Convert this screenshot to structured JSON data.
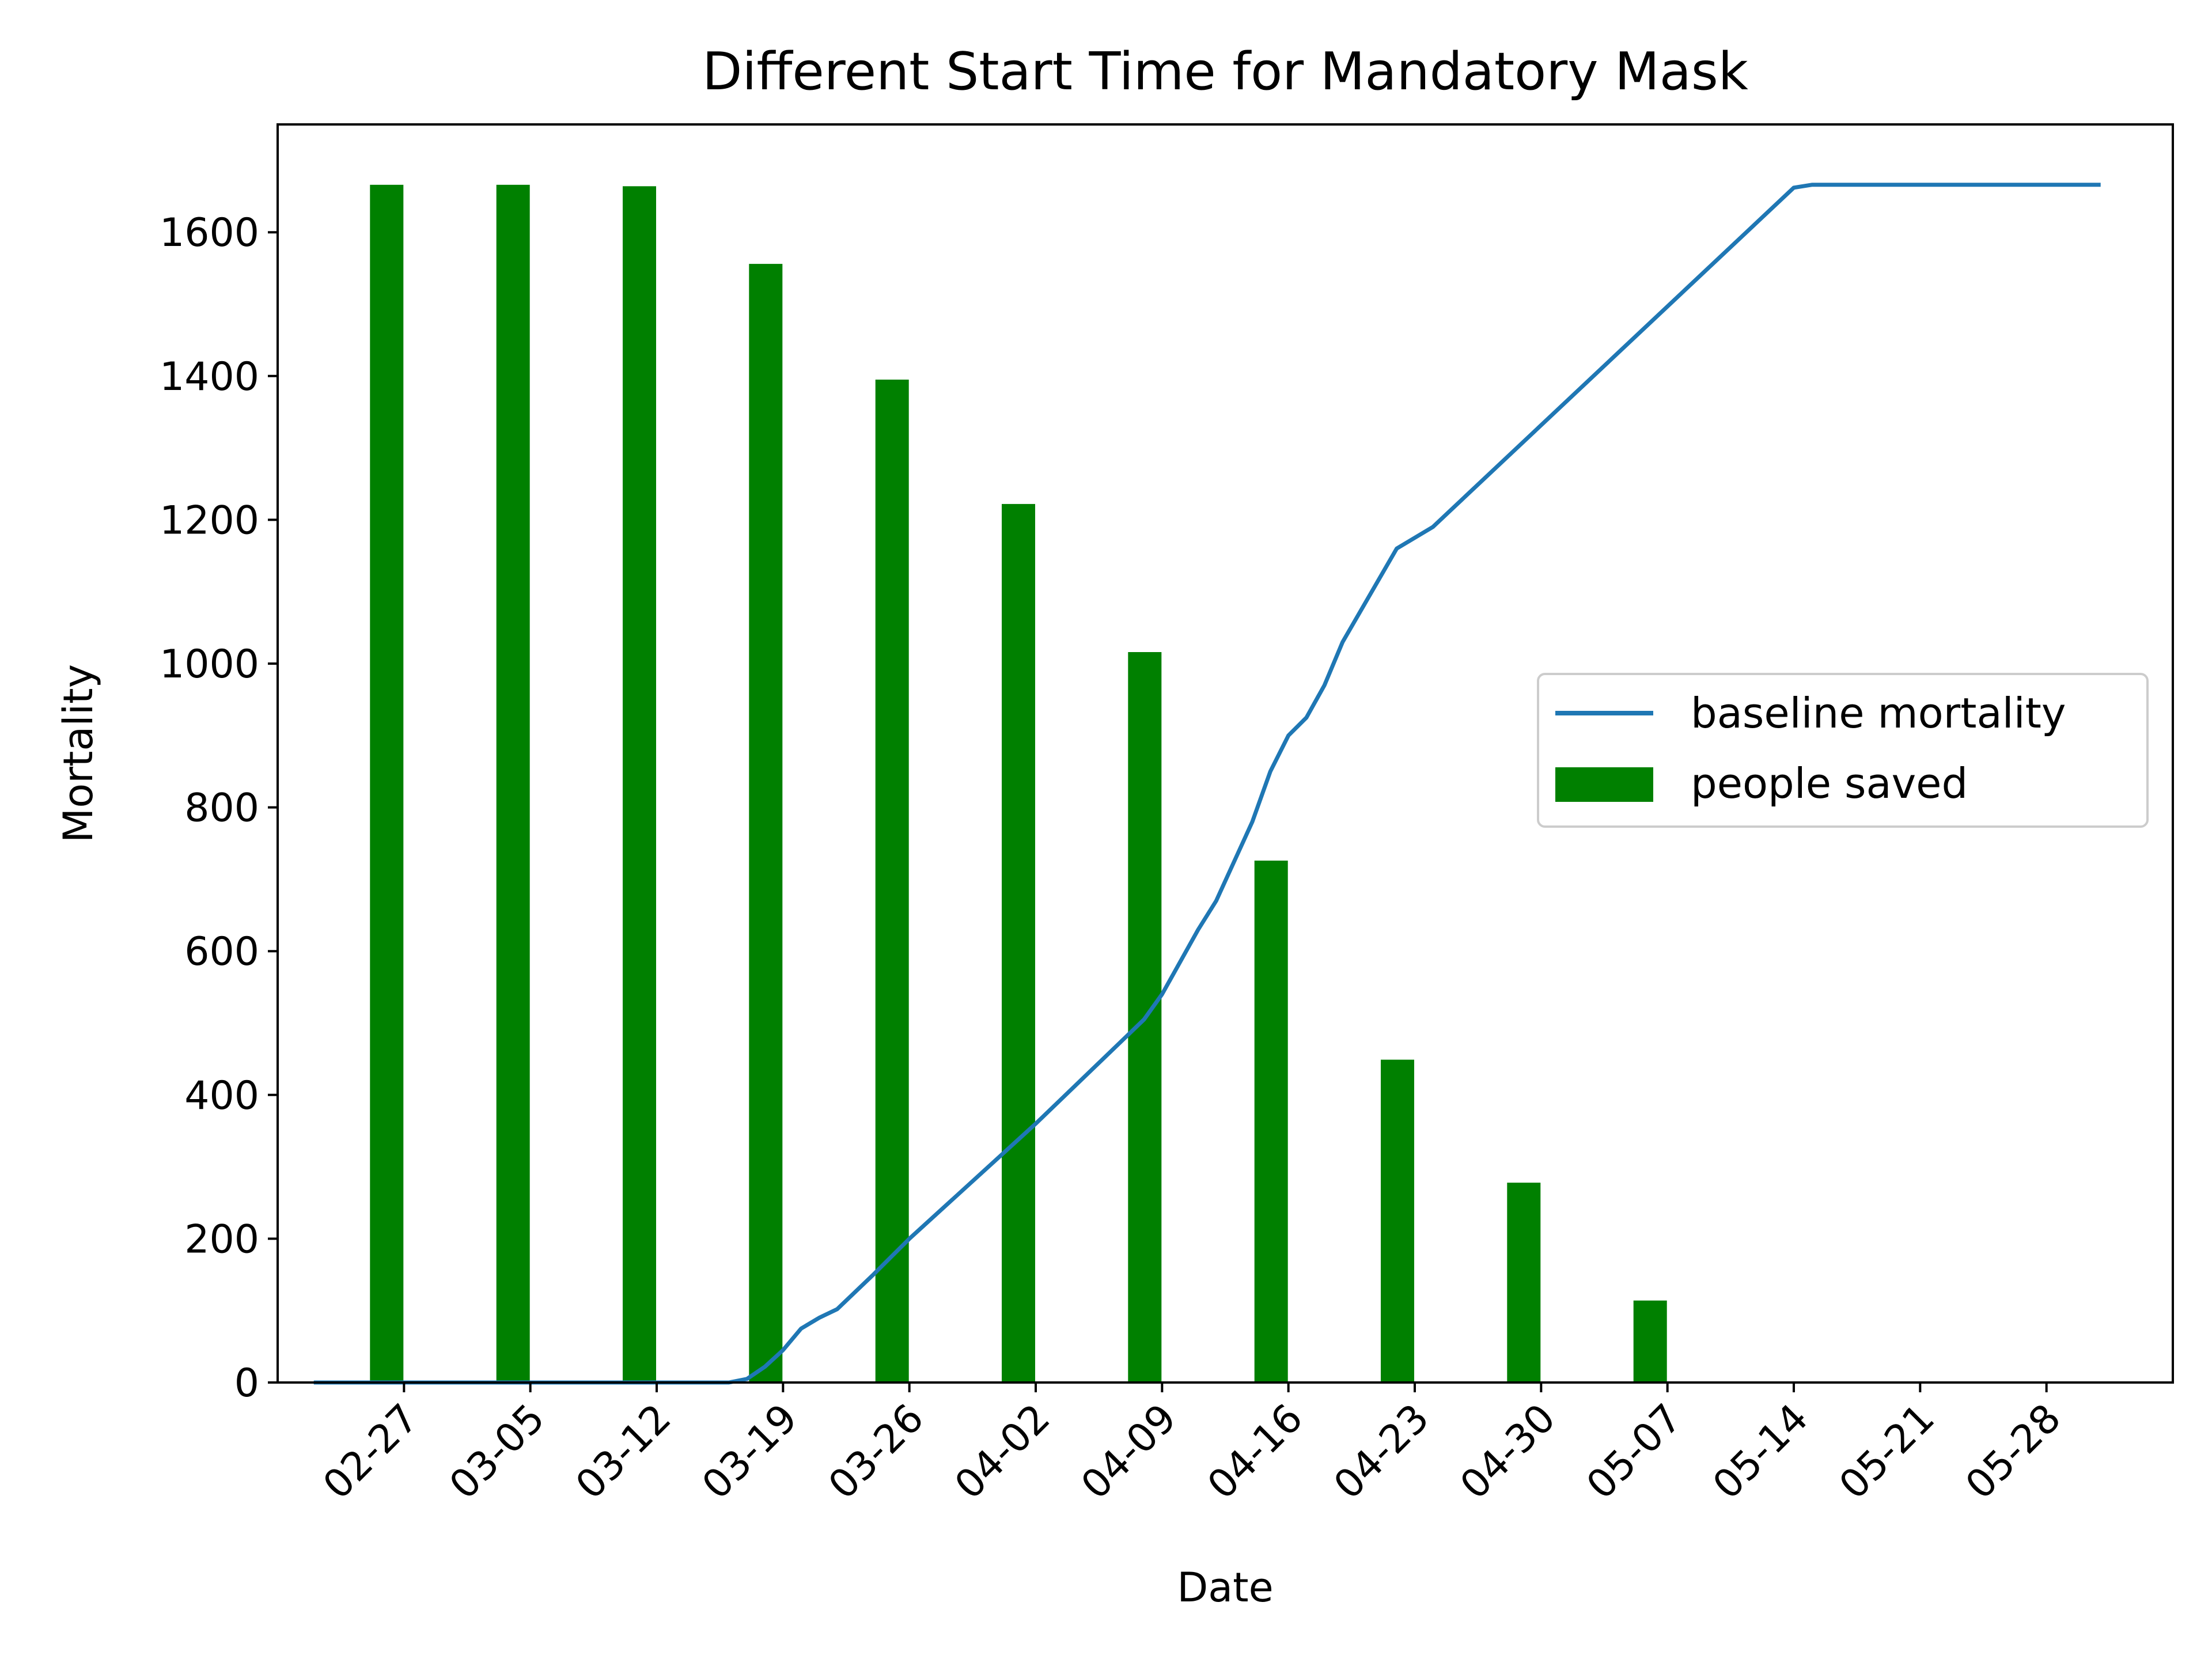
{
  "chart_data": {
    "type": "bar",
    "title": "Different Start Time for Mandatory Mask",
    "xlabel": "Date",
    "ylabel": "Mortality",
    "ylim": [
      0,
      1750
    ],
    "yticks": [
      0,
      200,
      400,
      600,
      800,
      1000,
      1200,
      1400,
      1600
    ],
    "xrange": [
      "02-20",
      "06-04"
    ],
    "xticks": [
      "02-27",
      "03-05",
      "03-12",
      "03-19",
      "03-26",
      "04-02",
      "04-09",
      "04-16",
      "04-23",
      "04-30",
      "05-07",
      "05-14",
      "05-21",
      "05-28"
    ],
    "grid": false,
    "legend_position": "center-right",
    "legend": [
      "baseline mortality",
      "people saved"
    ],
    "series": [
      {
        "name": "people saved",
        "type": "bar",
        "color": "#008000",
        "x": [
          "02-27",
          "03-05",
          "03-12",
          "03-19",
          "03-26",
          "04-02",
          "04-09",
          "04-16",
          "04-23",
          "04-30",
          "05-07"
        ],
        "values": [
          1666,
          1666,
          1664,
          1556,
          1395,
          1222,
          1016,
          726,
          449,
          278,
          114
        ]
      },
      {
        "name": "baseline mortality",
        "type": "line",
        "color": "#1f77b4",
        "x": [
          "02-22",
          "03-14",
          "03-16",
          "03-17",
          "03-18",
          "03-19",
          "03-20",
          "03-21",
          "03-22",
          "03-24",
          "03-26",
          "04-02",
          "04-08",
          "04-09",
          "04-11",
          "04-12",
          "04-14",
          "04-15",
          "04-16",
          "04-17",
          "04-18",
          "04-19",
          "04-22",
          "04-24",
          "05-14",
          "05-15",
          "05-31"
        ],
        "values": [
          0,
          0,
          0,
          5,
          22,
          45,
          75,
          90,
          102,
          150,
          200,
          360,
          505,
          540,
          630,
          670,
          780,
          850,
          900,
          925,
          970,
          1030,
          1160,
          1190,
          1662,
          1666,
          1666
        ]
      }
    ]
  }
}
